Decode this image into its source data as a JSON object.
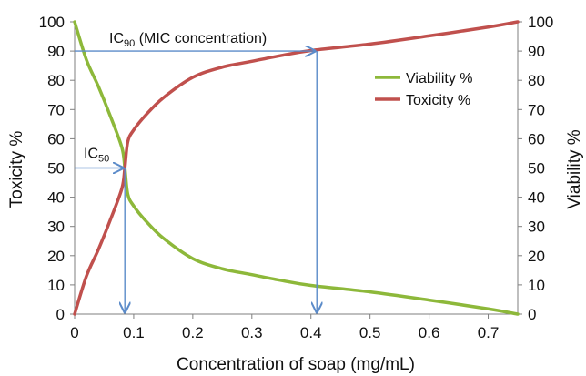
{
  "chart_data": {
    "type": "line",
    "xlabel": "Concentration of soap (mg/mL)",
    "ylabel_left": "Toxicity %",
    "ylabel_right": "Viability %",
    "xlim": [
      0,
      0.75
    ],
    "ylim": [
      0,
      100
    ],
    "x_ticks": [
      "0",
      "0.1",
      "0.2",
      "0.3",
      "0.4",
      "0.5",
      "0.6",
      "0.7"
    ],
    "y_ticks": [
      "0",
      "10",
      "20",
      "30",
      "40",
      "50",
      "60",
      "70",
      "80",
      "90",
      "100"
    ],
    "legend_position": "top-right",
    "grid": false,
    "series": [
      {
        "name": "Viability %",
        "color": "#8db83a",
        "x": [
          0,
          0.02,
          0.04,
          0.06,
          0.08,
          0.085,
          0.09,
          0.1,
          0.12,
          0.15,
          0.2,
          0.25,
          0.3,
          0.35,
          0.4,
          0.5,
          0.6,
          0.7,
          0.75
        ],
        "y": [
          100,
          87,
          78,
          68,
          57,
          50,
          41,
          37,
          32,
          26,
          19,
          15.5,
          13.5,
          11.5,
          9.8,
          7.6,
          4.8,
          1.8,
          0
        ]
      },
      {
        "name": "Toxicity %",
        "color": "#c0504d",
        "x": [
          0,
          0.02,
          0.04,
          0.06,
          0.08,
          0.085,
          0.09,
          0.1,
          0.12,
          0.15,
          0.2,
          0.25,
          0.3,
          0.35,
          0.4,
          0.5,
          0.6,
          0.7,
          0.75
        ],
        "y": [
          0,
          13,
          22,
          32,
          43,
          50,
          59,
          63,
          68,
          74,
          81,
          84.5,
          86.5,
          88.5,
          90.2,
          92.4,
          95.2,
          98.2,
          100
        ]
      }
    ],
    "annotations": {
      "ic50": {
        "label": "IC",
        "sub": "50",
        "x": 0.085,
        "y": 50
      },
      "ic90": {
        "label": "IC",
        "sub": "90",
        "suffix": " (MIC concentration)",
        "x": 0.41,
        "y": 90
      }
    },
    "arrow_color": "#5b8bc9"
  }
}
